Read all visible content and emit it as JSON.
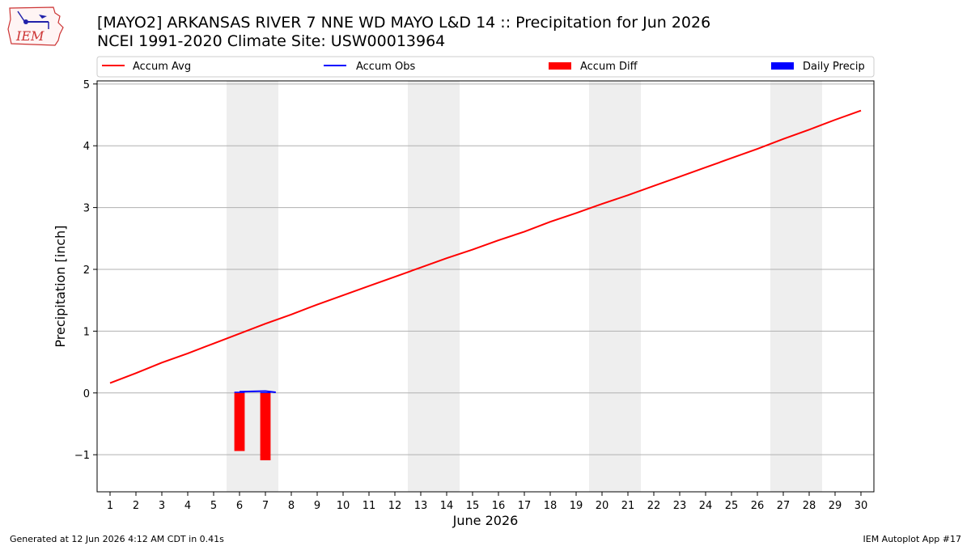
{
  "header": {
    "title_line1": "[MAYO2] ARKANSAS RIVER 7 NNE WD MAYO L&D 14 :: Precipitation for Jun 2026",
    "title_line2": "NCEI 1991-2020 Climate Site: USW00013964",
    "logo_text": "IEM"
  },
  "footer": {
    "left": "Generated at 12 Jun 2026 4:12 AM CDT in 0.41s",
    "right": "IEM Autoplot App #17"
  },
  "colors": {
    "avg": "#ff0000",
    "obs": "#0000ff",
    "diff": "#ff0000",
    "daily": "#0000ff",
    "weekend": "#eeeeee",
    "grid": "#b0b0b0"
  },
  "chart_data": {
    "type": "line",
    "xlabel": "June 2026",
    "ylabel": "Precipitation [inch]",
    "xlim": [
      0.5,
      30.5
    ],
    "ylim": [
      -1.6,
      5.05
    ],
    "yticks": [
      -1,
      0,
      1,
      2,
      3,
      4,
      5
    ],
    "ytick_labels": [
      "−1",
      "0",
      "1",
      "2",
      "3",
      "4",
      "5"
    ],
    "categories": [
      "1",
      "2",
      "3",
      "4",
      "5",
      "6",
      "7",
      "8",
      "9",
      "10",
      "11",
      "12",
      "13",
      "14",
      "15",
      "16",
      "17",
      "18",
      "19",
      "20",
      "21",
      "22",
      "23",
      "24",
      "25",
      "26",
      "27",
      "28",
      "29",
      "30"
    ],
    "grid": "horizontal",
    "legend_position": "top",
    "shaded_days": [
      [
        6,
        7
      ],
      [
        13,
        14
      ],
      [
        20,
        21
      ],
      [
        27,
        28
      ]
    ],
    "series": [
      {
        "name": "Accum Avg",
        "kind": "line",
        "color": "#ff0000",
        "x": [
          1,
          2,
          3,
          4,
          5,
          6,
          7,
          8,
          9,
          10,
          11,
          12,
          13,
          14,
          15,
          16,
          17,
          18,
          19,
          20,
          21,
          22,
          23,
          24,
          25,
          26,
          27,
          28,
          29,
          30
        ],
        "values": [
          0.16,
          0.32,
          0.49,
          0.64,
          0.8,
          0.96,
          1.12,
          1.27,
          1.43,
          1.58,
          1.73,
          1.88,
          2.03,
          2.18,
          2.32,
          2.47,
          2.61,
          2.77,
          2.91,
          3.06,
          3.2,
          3.35,
          3.5,
          3.65,
          3.8,
          3.95,
          4.11,
          4.26,
          4.42,
          4.57
        ]
      },
      {
        "name": "Accum Obs",
        "kind": "line",
        "color": "#0000ff",
        "x": [
          6,
          7,
          7.4
        ],
        "values": [
          0.02,
          0.03,
          0.01
        ]
      },
      {
        "name": "Accum Diff",
        "kind": "bar",
        "color": "#ff0000",
        "x": [
          6,
          7
        ],
        "values": [
          -0.94,
          -1.09
        ]
      },
      {
        "name": "Daily Precip",
        "kind": "bar",
        "color": "#0000ff",
        "x": [
          6,
          7
        ],
        "values": [
          0.02,
          0.01
        ]
      }
    ]
  }
}
